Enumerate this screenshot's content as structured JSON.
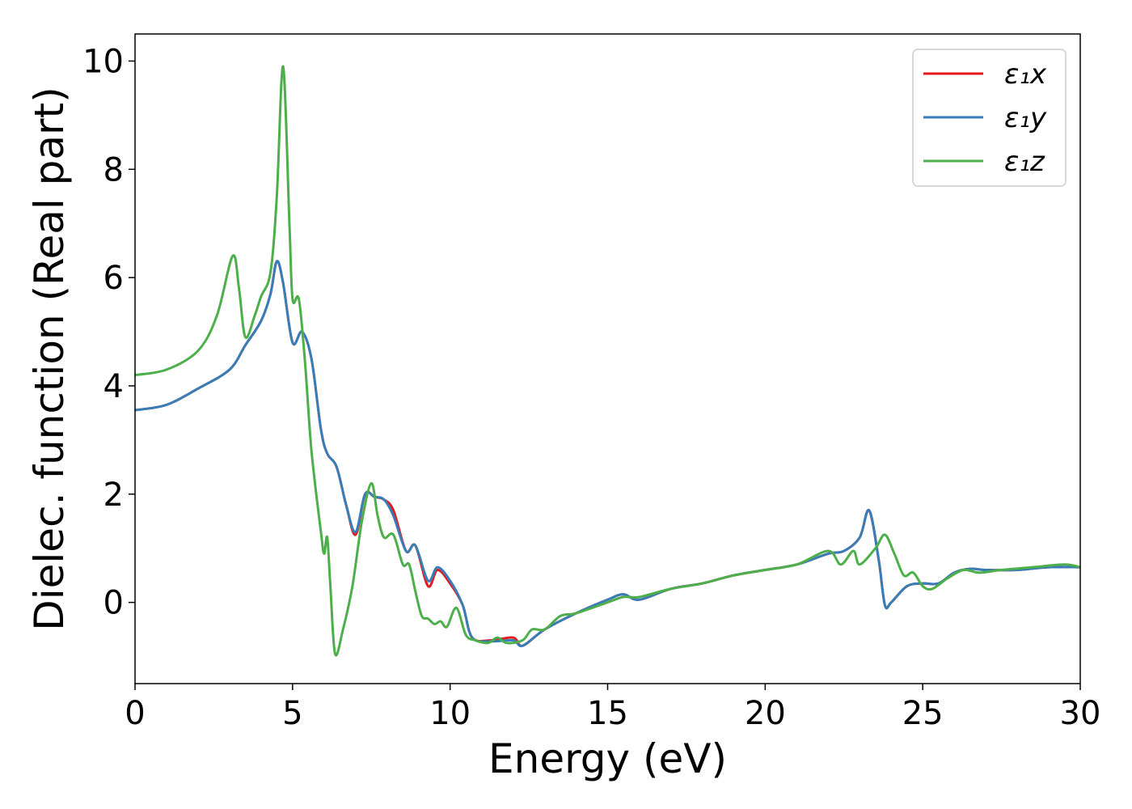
{
  "chart_data": {
    "type": "line",
    "title": "",
    "xlabel": "Energy (eV)",
    "ylabel": "Dielec. function (Real part)",
    "xlim": [
      0,
      30
    ],
    "ylim": [
      -1.5,
      10.5
    ],
    "xticks": [
      0,
      5,
      10,
      15,
      20,
      25,
      30
    ],
    "yticks": [
      0,
      2,
      4,
      6,
      8,
      10
    ],
    "grid": false,
    "legend_position": "top-right",
    "series": [
      {
        "name": "ε₁x",
        "color": "#e41a1c",
        "points": [
          [
            0,
            3.55
          ],
          [
            1,
            3.65
          ],
          [
            2,
            3.95
          ],
          [
            3,
            4.3
          ],
          [
            3.5,
            4.75
          ],
          [
            4,
            5.2
          ],
          [
            4.3,
            5.7
          ],
          [
            4.5,
            6.3
          ],
          [
            4.7,
            5.9
          ],
          [
            5.0,
            4.8
          ],
          [
            5.3,
            5.0
          ],
          [
            5.6,
            4.5
          ],
          [
            5.9,
            3.2
          ],
          [
            6.1,
            2.75
          ],
          [
            6.4,
            2.5
          ],
          [
            6.7,
            1.8
          ],
          [
            7.0,
            1.25
          ],
          [
            7.3,
            2.0
          ],
          [
            7.6,
            1.95
          ],
          [
            7.9,
            1.9
          ],
          [
            8.2,
            1.7
          ],
          [
            8.6,
            0.95
          ],
          [
            8.9,
            1.05
          ],
          [
            9.3,
            0.3
          ],
          [
            9.6,
            0.6
          ],
          [
            10.0,
            0.35
          ],
          [
            10.4,
            -0.05
          ],
          [
            10.7,
            -0.65
          ],
          [
            11.3,
            -0.7
          ],
          [
            12.0,
            -0.65
          ],
          [
            12.3,
            -0.8
          ],
          [
            13,
            -0.5
          ],
          [
            14,
            -0.2
          ],
          [
            15,
            0.05
          ],
          [
            15.5,
            0.15
          ],
          [
            16,
            0.05
          ],
          [
            17,
            0.25
          ],
          [
            18,
            0.35
          ],
          [
            19,
            0.5
          ],
          [
            20,
            0.6
          ],
          [
            21,
            0.7
          ],
          [
            22,
            0.9
          ],
          [
            22.5,
            0.95
          ],
          [
            23,
            1.2
          ],
          [
            23.3,
            1.7
          ],
          [
            23.6,
            0.8
          ],
          [
            23.8,
            -0.05
          ],
          [
            24,
            0.0
          ],
          [
            24.5,
            0.3
          ],
          [
            25,
            0.35
          ],
          [
            25.5,
            0.35
          ],
          [
            26,
            0.55
          ],
          [
            26.5,
            0.62
          ],
          [
            27,
            0.6
          ],
          [
            28,
            0.6
          ],
          [
            29,
            0.65
          ],
          [
            30,
            0.65
          ]
        ]
      },
      {
        "name": "ε₁y",
        "color": "#377eb8",
        "points": [
          [
            0,
            3.55
          ],
          [
            1,
            3.65
          ],
          [
            2,
            3.95
          ],
          [
            3,
            4.3
          ],
          [
            3.5,
            4.75
          ],
          [
            4,
            5.2
          ],
          [
            4.3,
            5.7
          ],
          [
            4.5,
            6.3
          ],
          [
            4.7,
            5.9
          ],
          [
            5.0,
            4.8
          ],
          [
            5.3,
            5.0
          ],
          [
            5.6,
            4.5
          ],
          [
            5.9,
            3.2
          ],
          [
            6.1,
            2.75
          ],
          [
            6.4,
            2.5
          ],
          [
            6.7,
            1.8
          ],
          [
            7.0,
            1.3
          ],
          [
            7.3,
            2.0
          ],
          [
            7.6,
            1.95
          ],
          [
            7.9,
            1.9
          ],
          [
            8.2,
            1.6
          ],
          [
            8.6,
            0.95
          ],
          [
            8.9,
            1.05
          ],
          [
            9.3,
            0.4
          ],
          [
            9.6,
            0.65
          ],
          [
            10.0,
            0.4
          ],
          [
            10.4,
            -0.05
          ],
          [
            10.7,
            -0.65
          ],
          [
            11.3,
            -0.72
          ],
          [
            12.0,
            -0.7
          ],
          [
            12.3,
            -0.8
          ],
          [
            13,
            -0.5
          ],
          [
            14,
            -0.2
          ],
          [
            15,
            0.05
          ],
          [
            15.5,
            0.15
          ],
          [
            16,
            0.05
          ],
          [
            17,
            0.25
          ],
          [
            18,
            0.35
          ],
          [
            19,
            0.5
          ],
          [
            20,
            0.6
          ],
          [
            21,
            0.7
          ],
          [
            22,
            0.9
          ],
          [
            22.5,
            0.95
          ],
          [
            23,
            1.2
          ],
          [
            23.3,
            1.7
          ],
          [
            23.6,
            0.8
          ],
          [
            23.8,
            -0.05
          ],
          [
            24,
            0.0
          ],
          [
            24.5,
            0.3
          ],
          [
            25,
            0.35
          ],
          [
            25.5,
            0.35
          ],
          [
            26,
            0.55
          ],
          [
            26.5,
            0.62
          ],
          [
            27,
            0.6
          ],
          [
            28,
            0.6
          ],
          [
            29,
            0.65
          ],
          [
            30,
            0.65
          ]
        ]
      },
      {
        "name": "ε₁z",
        "color": "#4daf4a",
        "points": [
          [
            0,
            4.2
          ],
          [
            1,
            4.3
          ],
          [
            2,
            4.65
          ],
          [
            2.6,
            5.3
          ],
          [
            3.1,
            6.4
          ],
          [
            3.3,
            5.8
          ],
          [
            3.5,
            4.9
          ],
          [
            3.8,
            5.3
          ],
          [
            4.0,
            5.65
          ],
          [
            4.3,
            6.1
          ],
          [
            4.5,
            7.5
          ],
          [
            4.7,
            9.9
          ],
          [
            4.9,
            7.0
          ],
          [
            5.0,
            5.6
          ],
          [
            5.2,
            5.6
          ],
          [
            5.4,
            4.4
          ],
          [
            5.6,
            2.8
          ],
          [
            5.9,
            1.3
          ],
          [
            6.0,
            0.9
          ],
          [
            6.1,
            1.2
          ],
          [
            6.2,
            0.3
          ],
          [
            6.35,
            -0.95
          ],
          [
            6.6,
            -0.5
          ],
          [
            6.9,
            0.3
          ],
          [
            7.2,
            1.5
          ],
          [
            7.5,
            2.2
          ],
          [
            7.7,
            1.6
          ],
          [
            7.9,
            1.2
          ],
          [
            8.2,
            1.25
          ],
          [
            8.5,
            0.7
          ],
          [
            8.7,
            0.7
          ],
          [
            8.9,
            0.2
          ],
          [
            9.1,
            -0.25
          ],
          [
            9.3,
            -0.3
          ],
          [
            9.5,
            -0.4
          ],
          [
            9.7,
            -0.35
          ],
          [
            9.9,
            -0.45
          ],
          [
            10.2,
            -0.1
          ],
          [
            10.5,
            -0.6
          ],
          [
            10.8,
            -0.7
          ],
          [
            11.2,
            -0.75
          ],
          [
            11.5,
            -0.65
          ],
          [
            11.8,
            -0.75
          ],
          [
            12.3,
            -0.7
          ],
          [
            12.6,
            -0.5
          ],
          [
            13,
            -0.5
          ],
          [
            13.5,
            -0.25
          ],
          [
            14,
            -0.2
          ],
          [
            15,
            0.0
          ],
          [
            15.5,
            0.1
          ],
          [
            16,
            0.1
          ],
          [
            17,
            0.25
          ],
          [
            18,
            0.35
          ],
          [
            19,
            0.5
          ],
          [
            20,
            0.6
          ],
          [
            21,
            0.7
          ],
          [
            22,
            0.95
          ],
          [
            22.4,
            0.7
          ],
          [
            22.8,
            0.95
          ],
          [
            23.0,
            0.7
          ],
          [
            23.5,
            1.0
          ],
          [
            23.8,
            1.25
          ],
          [
            24.1,
            0.9
          ],
          [
            24.4,
            0.5
          ],
          [
            24.7,
            0.55
          ],
          [
            25.0,
            0.3
          ],
          [
            25.3,
            0.25
          ],
          [
            25.8,
            0.45
          ],
          [
            26.3,
            0.6
          ],
          [
            26.8,
            0.55
          ],
          [
            27.5,
            0.6
          ],
          [
            28.5,
            0.65
          ],
          [
            29.5,
            0.7
          ],
          [
            30,
            0.65
          ]
        ]
      }
    ]
  }
}
